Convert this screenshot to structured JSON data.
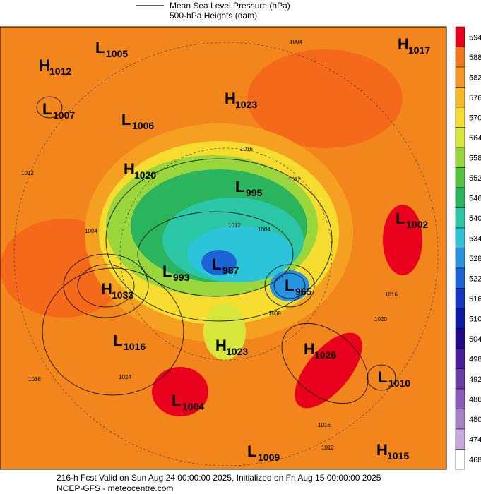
{
  "legend": {
    "line1": "Mean Sea Level Pressure (hPa)",
    "line2": "500-hPa Heights (dam)"
  },
  "colorbar": {
    "values": [
      594,
      588,
      582,
      576,
      570,
      564,
      558,
      552,
      546,
      540,
      534,
      528,
      522,
      516,
      510,
      504,
      498,
      492,
      486,
      480,
      474,
      468
    ],
    "colors": [
      "#e8001c",
      "#f2771a",
      "#f5961e",
      "#f8b928",
      "#f6dc2e",
      "#d6e63a",
      "#98d63c",
      "#52c43e",
      "#2bb45e",
      "#2ac6a6",
      "#2cc4d8",
      "#2794e0",
      "#1c64d6",
      "#1436c4",
      "#0c1aa6",
      "#220c8a",
      "#4a1c9e",
      "#6a3ca8",
      "#8a5cb6",
      "#a880c6",
      "#c8aadc",
      "#ffffff"
    ]
  },
  "centers": [
    {
      "kind": "L",
      "value": 1005
    },
    {
      "kind": "H",
      "value": 1012
    },
    {
      "kind": "L",
      "value": 1007
    },
    {
      "kind": "L",
      "value": 1006
    },
    {
      "kind": "H",
      "value": 1023
    },
    {
      "kind": "H",
      "value": 1017
    },
    {
      "kind": "H",
      "value": 1020
    },
    {
      "kind": "L",
      "value": 995
    },
    {
      "kind": "L",
      "value": 1002
    },
    {
      "kind": "L",
      "value": 987
    },
    {
      "kind": "L",
      "value": 993
    },
    {
      "kind": "L",
      "value": 965
    },
    {
      "kind": "H",
      "value": 1033
    },
    {
      "kind": "L",
      "value": 1016
    },
    {
      "kind": "H",
      "value": 1023
    },
    {
      "kind": "H",
      "value": 1026
    },
    {
      "kind": "L",
      "value": 1010
    },
    {
      "kind": "L",
      "value": 1004
    },
    {
      "kind": "L",
      "value": 1009
    },
    {
      "kind": "H",
      "value": 1015
    }
  ],
  "isobar_labels": [
    1004,
    1016,
    1012,
    1012,
    1004,
    1008,
    1020,
    1016,
    1024,
    1012,
    1016,
    1012,
    1016,
    1004
  ],
  "footer": {
    "line1": "216-h Fcst Valid on Sun Aug 24 00:00:00 2025, Initialized on Fri Aug 15 00:00:00 2025",
    "line2": "NCEP-GFS  - meteocentre.com"
  }
}
